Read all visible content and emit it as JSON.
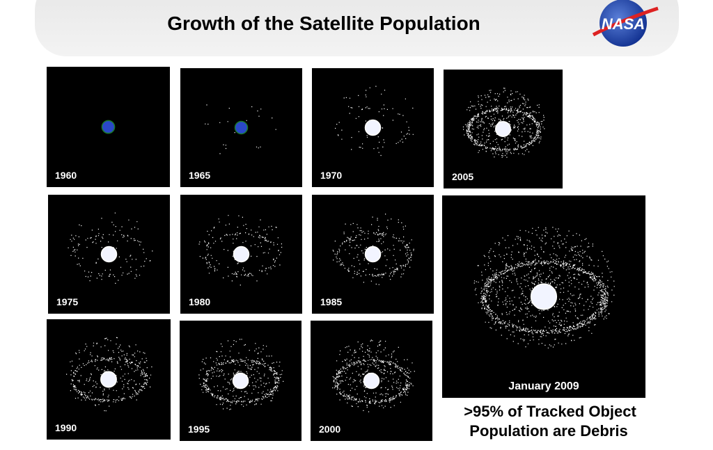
{
  "header": {
    "title": "Growth of the Satellite Population",
    "logo": "NASA"
  },
  "panels": [
    {
      "label": "1960"
    },
    {
      "label": "1965"
    },
    {
      "label": "1970"
    },
    {
      "label": "2005"
    },
    {
      "label": "1975"
    },
    {
      "label": "1980"
    },
    {
      "label": "1985"
    },
    {
      "label": "January 2009"
    },
    {
      "label": "1990"
    },
    {
      "label": "1995"
    },
    {
      "label": "2000"
    }
  ],
  "caption": {
    "lines": [
      ">95% of Tracked Object",
      "Population are Debris"
    ]
  }
}
